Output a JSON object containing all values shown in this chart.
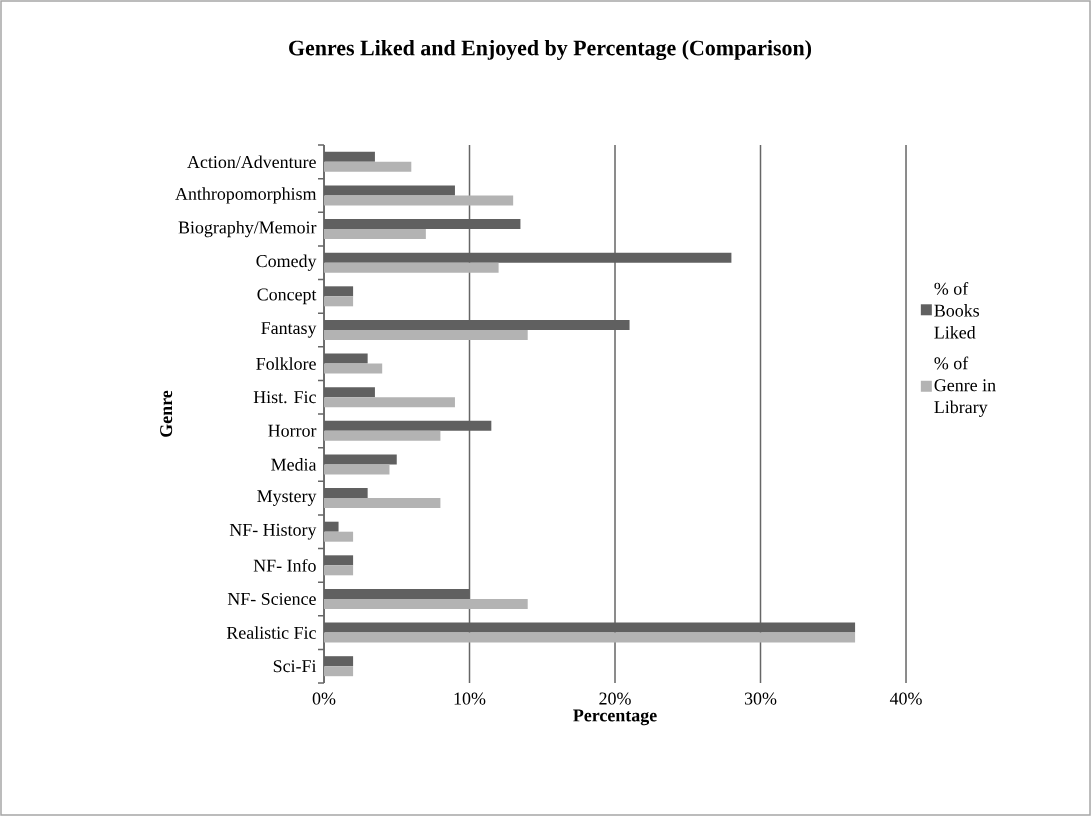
{
  "chart_data": {
    "type": "bar",
    "orientation": "horizontal",
    "title": "Genres Liked and Enjoyed by Percentage (Comparison)",
    "xlabel": "Percentage",
    "ylabel": "Genre",
    "categories": [
      "Action/Adventure",
      "Anthropomorphism",
      "Biography/Memoir",
      "Comedy",
      "Concept",
      "Fantasy",
      "Folklore",
      "Hist. Fic",
      "Horror",
      "Media",
      "Mystery",
      "NF- History",
      "NF- Info",
      "NF- Science",
      "Realistic Fic",
      "Sci-Fi"
    ],
    "series": [
      {
        "name": "% of Books Liked",
        "color": "#606060",
        "values": [
          3.5,
          9,
          13.5,
          28,
          2,
          21,
          3,
          3.5,
          11.5,
          5,
          3,
          1,
          2,
          10,
          36.5,
          2
        ]
      },
      {
        "name": "% of Genre in Library",
        "color": "#b3b3b3",
        "values": [
          6,
          13,
          7,
          12,
          2,
          14,
          4,
          9,
          8,
          4.5,
          8,
          2,
          2,
          14,
          36.5,
          2
        ]
      }
    ],
    "xlim": [
      0,
      40
    ],
    "xticks": [
      {
        "value": 0,
        "label": "0%"
      },
      {
        "value": 10,
        "label": "10%"
      },
      {
        "value": 20,
        "label": "20%"
      },
      {
        "value": 30,
        "label": "30%"
      },
      {
        "value": 40,
        "label": "40%"
      }
    ],
    "grid": "x",
    "legend": "right"
  }
}
